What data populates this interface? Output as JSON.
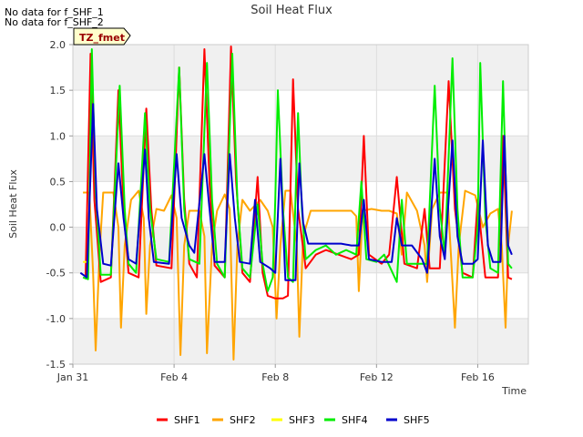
{
  "messages": [
    "No data for f_SHF_1",
    "No data for f_SHF_2"
  ],
  "tag": "TZ_fmet",
  "colors": {
    "SHF1": "#ff0000",
    "SHF2": "#ffa500",
    "SHF3": "#ffff00",
    "SHF4": "#00ee00",
    "SHF5": "#0000cc",
    "band": "#f0f0f0",
    "grid": "#dddddd",
    "tag_bg": "#ffffcc",
    "tag_text": "#990000"
  },
  "chart_data": {
    "type": "line",
    "title": "Soil Heat Flux",
    "xlabel": "Time",
    "ylabel": "Soil Heat Flux",
    "xlim": [
      0,
      18
    ],
    "ylim": [
      -1.5,
      2.0
    ],
    "xticks": [
      {
        "value": 0,
        "label": "Jan 31"
      },
      {
        "value": 4,
        "label": "Feb 4"
      },
      {
        "value": 8,
        "label": "Feb 8"
      },
      {
        "value": 12,
        "label": "Feb 12"
      },
      {
        "value": 16,
        "label": "Feb 16"
      }
    ],
    "yticks": [
      {
        "value": -1.5,
        "label": "-1.5"
      },
      {
        "value": -1.0,
        "label": "-1.0"
      },
      {
        "value": -0.5,
        "label": "-0.5"
      },
      {
        "value": 0.0,
        "label": "0.0"
      },
      {
        "value": 0.5,
        "label": "0.5"
      },
      {
        "value": 1.0,
        "label": "1.0"
      },
      {
        "value": 1.5,
        "label": "1.5"
      },
      {
        "value": 2.0,
        "label": "2.0"
      }
    ],
    "series": [
      {
        "name": "SHF1",
        "points": [
          [
            0.5,
            -0.57
          ],
          [
            0.7,
            1.9
          ],
          [
            0.85,
            0.3
          ],
          [
            1.1,
            -0.6
          ],
          [
            1.5,
            -0.55
          ],
          [
            1.8,
            1.5
          ],
          [
            2.0,
            0.2
          ],
          [
            2.2,
            -0.5
          ],
          [
            2.6,
            -0.55
          ],
          [
            2.9,
            1.3
          ],
          [
            3.1,
            0.2
          ],
          [
            3.3,
            -0.42
          ],
          [
            3.9,
            -0.45
          ],
          [
            4.2,
            1.75
          ],
          [
            4.4,
            0.3
          ],
          [
            4.6,
            -0.4
          ],
          [
            4.9,
            -0.55
          ],
          [
            5.2,
            1.95
          ],
          [
            5.4,
            0.5
          ],
          [
            5.6,
            -0.42
          ],
          [
            6.0,
            -0.55
          ],
          [
            6.25,
            1.98
          ],
          [
            6.45,
            0.5
          ],
          [
            6.7,
            -0.5
          ],
          [
            7.0,
            -0.6
          ],
          [
            7.3,
            0.55
          ],
          [
            7.5,
            -0.5
          ],
          [
            7.7,
            -0.75
          ],
          [
            8.0,
            -0.78
          ],
          [
            8.3,
            -0.78
          ],
          [
            8.5,
            -0.75
          ],
          [
            8.7,
            1.62
          ],
          [
            8.9,
            0.2
          ],
          [
            9.2,
            -0.45
          ],
          [
            9.6,
            -0.3
          ],
          [
            10.0,
            -0.25
          ],
          [
            10.5,
            -0.3
          ],
          [
            11.0,
            -0.35
          ],
          [
            11.3,
            -0.3
          ],
          [
            11.5,
            1.0
          ],
          [
            11.7,
            -0.3
          ],
          [
            12.2,
            -0.4
          ],
          [
            12.5,
            -0.3
          ],
          [
            12.8,
            0.55
          ],
          [
            13.1,
            -0.4
          ],
          [
            13.6,
            -0.45
          ],
          [
            13.9,
            0.2
          ],
          [
            14.1,
            -0.45
          ],
          [
            14.5,
            -0.45
          ],
          [
            14.85,
            1.6
          ],
          [
            15.1,
            0.2
          ],
          [
            15.4,
            -0.5
          ],
          [
            15.8,
            -0.55
          ],
          [
            16.0,
            0.3
          ],
          [
            16.3,
            -0.55
          ],
          [
            16.8,
            -0.55
          ],
          [
            17.0,
            1.0
          ],
          [
            17.2,
            -0.55
          ],
          [
            17.35,
            -0.57
          ]
        ]
      },
      {
        "name": "SHF2",
        "points": [
          [
            0.4,
            0.38
          ],
          [
            0.65,
            0.38
          ],
          [
            0.8,
            -0.5
          ],
          [
            0.9,
            -1.35
          ],
          [
            1.05,
            -0.3
          ],
          [
            1.2,
            0.38
          ],
          [
            1.6,
            0.38
          ],
          [
            1.8,
            0.0
          ],
          [
            1.9,
            -1.1
          ],
          [
            2.05,
            -0.2
          ],
          [
            2.3,
            0.3
          ],
          [
            2.6,
            0.4
          ],
          [
            2.8,
            0.1
          ],
          [
            2.9,
            -0.95
          ],
          [
            3.05,
            -0.2
          ],
          [
            3.3,
            0.2
          ],
          [
            3.6,
            0.18
          ],
          [
            3.9,
            0.35
          ],
          [
            4.1,
            0.1
          ],
          [
            4.25,
            -1.4
          ],
          [
            4.4,
            -0.2
          ],
          [
            4.6,
            0.18
          ],
          [
            5.0,
            0.18
          ],
          [
            5.2,
            -0.1
          ],
          [
            5.3,
            -1.38
          ],
          [
            5.5,
            -0.2
          ],
          [
            5.7,
            0.18
          ],
          [
            6.0,
            0.36
          ],
          [
            6.2,
            0.2
          ],
          [
            6.35,
            -1.45
          ],
          [
            6.5,
            -0.2
          ],
          [
            6.7,
            0.3
          ],
          [
            7.0,
            0.18
          ],
          [
            7.4,
            0.3
          ],
          [
            7.7,
            0.18
          ],
          [
            7.9,
            0.0
          ],
          [
            8.05,
            -1.0
          ],
          [
            8.2,
            -0.2
          ],
          [
            8.4,
            0.4
          ],
          [
            8.6,
            0.4
          ],
          [
            8.85,
            -0.2
          ],
          [
            8.95,
            -1.2
          ],
          [
            9.1,
            -0.1
          ],
          [
            9.4,
            0.18
          ],
          [
            9.8,
            0.18
          ],
          [
            10.2,
            0.18
          ],
          [
            10.6,
            0.18
          ],
          [
            11.0,
            0.18
          ],
          [
            11.2,
            0.12
          ],
          [
            11.3,
            -0.7
          ],
          [
            11.45,
            0.18
          ],
          [
            11.8,
            0.2
          ],
          [
            12.2,
            0.18
          ],
          [
            12.5,
            0.18
          ],
          [
            12.8,
            0.15
          ],
          [
            13.0,
            -0.3
          ],
          [
            13.2,
            0.38
          ],
          [
            13.6,
            0.18
          ],
          [
            13.9,
            -0.2
          ],
          [
            14.0,
            -0.6
          ],
          [
            14.2,
            0.2
          ],
          [
            14.5,
            0.38
          ],
          [
            14.8,
            0.38
          ],
          [
            14.95,
            -0.35
          ],
          [
            15.1,
            -1.1
          ],
          [
            15.25,
            -0.2
          ],
          [
            15.5,
            0.4
          ],
          [
            15.9,
            0.35
          ],
          [
            16.2,
            0.0
          ],
          [
            16.5,
            0.15
          ],
          [
            16.8,
            0.2
          ],
          [
            16.95,
            -0.2
          ],
          [
            17.1,
            -1.1
          ],
          [
            17.2,
            -0.2
          ],
          [
            17.35,
            0.18
          ]
        ]
      },
      {
        "name": "SHF3",
        "points": [
          [
            0.4,
            -0.38
          ],
          [
            0.6,
            -0.38
          ]
        ]
      },
      {
        "name": "SHF4",
        "points": [
          [
            0.4,
            -0.55
          ],
          [
            0.6,
            -0.57
          ],
          [
            0.75,
            1.95
          ],
          [
            0.9,
            0.4
          ],
          [
            1.1,
            -0.52
          ],
          [
            1.5,
            -0.52
          ],
          [
            1.85,
            1.55
          ],
          [
            2.05,
            0.2
          ],
          [
            2.2,
            -0.4
          ],
          [
            2.5,
            -0.5
          ],
          [
            2.85,
            1.25
          ],
          [
            3.05,
            0.2
          ],
          [
            3.3,
            -0.35
          ],
          [
            3.8,
            -0.38
          ],
          [
            4.2,
            1.75
          ],
          [
            4.4,
            0.2
          ],
          [
            4.6,
            -0.35
          ],
          [
            5.0,
            -0.4
          ],
          [
            5.3,
            1.8
          ],
          [
            5.5,
            0.3
          ],
          [
            5.7,
            -0.4
          ],
          [
            6.0,
            -0.55
          ],
          [
            6.3,
            1.9
          ],
          [
            6.5,
            0.3
          ],
          [
            6.7,
            -0.45
          ],
          [
            7.0,
            -0.55
          ],
          [
            7.3,
            0.25
          ],
          [
            7.5,
            -0.4
          ],
          [
            7.7,
            -0.7
          ],
          [
            7.9,
            -0.55
          ],
          [
            8.0,
            0.3
          ],
          [
            8.1,
            1.5
          ],
          [
            8.3,
            0.2
          ],
          [
            8.5,
            -0.55
          ],
          [
            8.7,
            -0.6
          ],
          [
            8.9,
            1.25
          ],
          [
            9.05,
            0.2
          ],
          [
            9.2,
            -0.35
          ],
          [
            9.6,
            -0.25
          ],
          [
            10.0,
            -0.2
          ],
          [
            10.4,
            -0.3
          ],
          [
            10.8,
            -0.25
          ],
          [
            11.2,
            -0.3
          ],
          [
            11.4,
            0.5
          ],
          [
            11.6,
            -0.35
          ],
          [
            12.0,
            -0.38
          ],
          [
            12.3,
            -0.3
          ],
          [
            12.8,
            -0.6
          ],
          [
            13.0,
            0.3
          ],
          [
            13.2,
            -0.4
          ],
          [
            13.6,
            -0.4
          ],
          [
            14.0,
            -0.4
          ],
          [
            14.3,
            1.55
          ],
          [
            14.5,
            0.2
          ],
          [
            14.7,
            -0.3
          ],
          [
            15.0,
            1.85
          ],
          [
            15.2,
            0.2
          ],
          [
            15.4,
            -0.55
          ],
          [
            15.8,
            -0.55
          ],
          [
            16.0,
            0.0
          ],
          [
            16.1,
            1.8
          ],
          [
            16.3,
            0.1
          ],
          [
            16.5,
            -0.45
          ],
          [
            16.8,
            -0.5
          ],
          [
            17.0,
            1.6
          ],
          [
            17.2,
            -0.4
          ],
          [
            17.35,
            -0.45
          ]
        ]
      },
      {
        "name": "SHF5",
        "points": [
          [
            0.3,
            -0.5
          ],
          [
            0.55,
            -0.55
          ],
          [
            0.8,
            1.35
          ],
          [
            0.95,
            0.2
          ],
          [
            1.2,
            -0.4
          ],
          [
            1.5,
            -0.42
          ],
          [
            1.8,
            0.7
          ],
          [
            2.0,
            0.1
          ],
          [
            2.2,
            -0.35
          ],
          [
            2.5,
            -0.4
          ],
          [
            2.85,
            0.85
          ],
          [
            3.0,
            0.1
          ],
          [
            3.2,
            -0.38
          ],
          [
            3.8,
            -0.4
          ],
          [
            4.1,
            0.8
          ],
          [
            4.3,
            0.1
          ],
          [
            4.6,
            -0.2
          ],
          [
            4.8,
            -0.28
          ],
          [
            5.2,
            0.8
          ],
          [
            5.4,
            0.2
          ],
          [
            5.6,
            -0.38
          ],
          [
            6.0,
            -0.38
          ],
          [
            6.2,
            0.8
          ],
          [
            6.4,
            0.1
          ],
          [
            6.6,
            -0.38
          ],
          [
            7.0,
            -0.4
          ],
          [
            7.2,
            0.3
          ],
          [
            7.4,
            -0.38
          ],
          [
            7.8,
            -0.45
          ],
          [
            8.0,
            -0.5
          ],
          [
            8.2,
            0.75
          ],
          [
            8.4,
            -0.58
          ],
          [
            8.8,
            -0.58
          ],
          [
            8.95,
            0.7
          ],
          [
            9.1,
            0.05
          ],
          [
            9.3,
            -0.18
          ],
          [
            9.8,
            -0.18
          ],
          [
            10.2,
            -0.18
          ],
          [
            10.6,
            -0.18
          ],
          [
            11.0,
            -0.2
          ],
          [
            11.3,
            -0.2
          ],
          [
            11.5,
            0.3
          ],
          [
            11.7,
            -0.35
          ],
          [
            12.2,
            -0.38
          ],
          [
            12.6,
            -0.38
          ],
          [
            12.8,
            0.1
          ],
          [
            13.0,
            -0.2
          ],
          [
            13.4,
            -0.2
          ],
          [
            13.8,
            -0.35
          ],
          [
            14.0,
            -0.5
          ],
          [
            14.3,
            0.75
          ],
          [
            14.5,
            -0.1
          ],
          [
            14.7,
            -0.35
          ],
          [
            15.0,
            0.95
          ],
          [
            15.2,
            -0.1
          ],
          [
            15.4,
            -0.4
          ],
          [
            15.8,
            -0.4
          ],
          [
            16.0,
            -0.35
          ],
          [
            16.2,
            0.95
          ],
          [
            16.4,
            -0.2
          ],
          [
            16.6,
            -0.38
          ],
          [
            16.9,
            -0.38
          ],
          [
            17.05,
            1.0
          ],
          [
            17.2,
            -0.2
          ],
          [
            17.35,
            -0.3
          ]
        ]
      }
    ],
    "legend": [
      "SHF1",
      "SHF2",
      "SHF3",
      "SHF4",
      "SHF5"
    ],
    "legend_position": "bottom"
  }
}
